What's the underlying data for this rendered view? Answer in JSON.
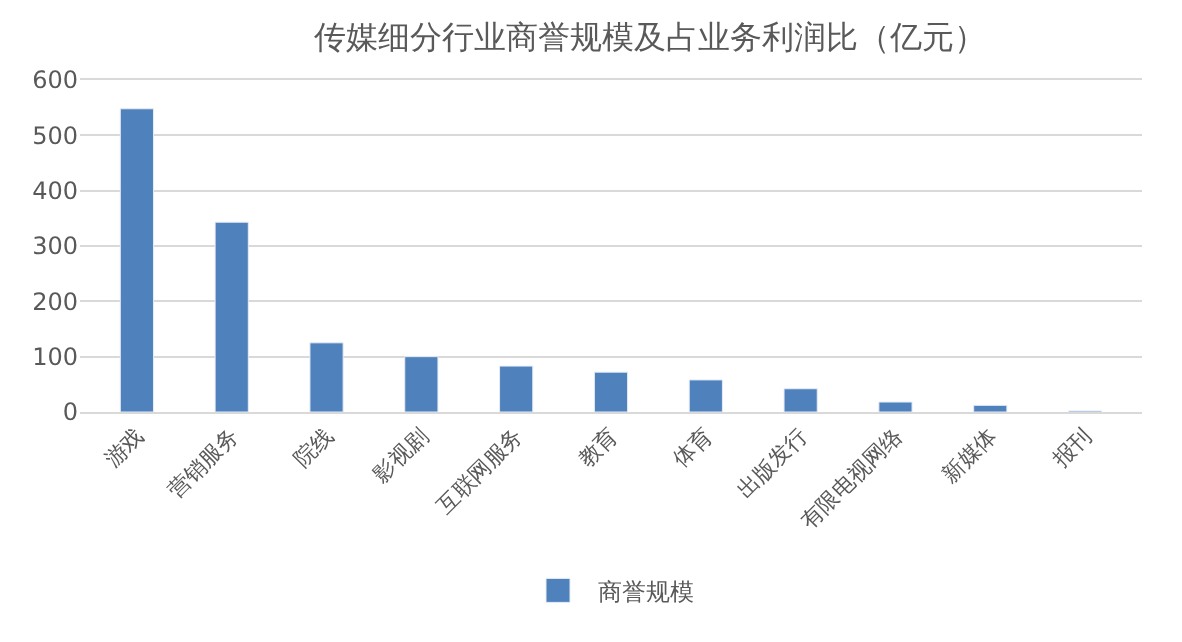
{
  "chart_data": {
    "type": "bar",
    "title": "传媒细分行业商誉规模及占业务利润比（亿元）",
    "categories": [
      "游戏",
      "营销服务",
      "院线",
      "影视剧",
      "互联网服务",
      "教育",
      "体育",
      "出版发行",
      "有限电视网络",
      "新媒体",
      "报刊"
    ],
    "series": [
      {
        "name": "商誉规模",
        "color": "#4f81bd",
        "values": [
          548,
          343,
          125,
          100,
          83,
          72,
          58,
          42,
          18,
          12,
          2
        ]
      }
    ],
    "ylim": [
      0,
      600
    ],
    "yticks": [
      0,
      100,
      200,
      300,
      400,
      500,
      600
    ],
    "grid": "y",
    "legend": "bottom"
  }
}
